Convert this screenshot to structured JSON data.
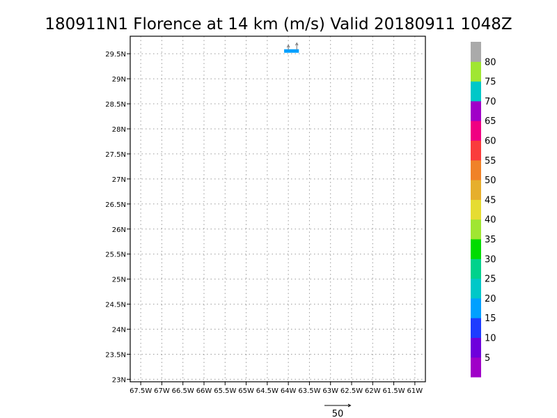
{
  "chart_data": {
    "type": "heatmap",
    "title": "180911N1 Florence at 14 km (m/s) Valid 20180911 1048Z",
    "xlabel": "",
    "ylabel": "",
    "xlim": [
      -67.75,
      -60.75
    ],
    "ylim": [
      22.95,
      29.85
    ],
    "grid": true,
    "x_ticks": [
      {
        "value": -67.5,
        "label": "67.5W"
      },
      {
        "value": -67,
        "label": "67W"
      },
      {
        "value": -66.5,
        "label": "66.5W"
      },
      {
        "value": -66,
        "label": "66W"
      },
      {
        "value": -65.5,
        "label": "65.5W"
      },
      {
        "value": -65,
        "label": "65W"
      },
      {
        "value": -64.5,
        "label": "64.5W"
      },
      {
        "value": -64,
        "label": "64W"
      },
      {
        "value": -63.5,
        "label": "63.5W"
      },
      {
        "value": -63,
        "label": "63W"
      },
      {
        "value": -62.5,
        "label": "62.5W"
      },
      {
        "value": -62,
        "label": "62W"
      },
      {
        "value": -61.5,
        "label": "61.5W"
      },
      {
        "value": -61,
        "label": "61W"
      }
    ],
    "y_ticks": [
      {
        "value": 23,
        "label": "23N"
      },
      {
        "value": 23.5,
        "label": "23.5N"
      },
      {
        "value": 24,
        "label": "24N"
      },
      {
        "value": 24.5,
        "label": "24.5N"
      },
      {
        "value": 25,
        "label": "25N"
      },
      {
        "value": 25.5,
        "label": "25.5N"
      },
      {
        "value": 26,
        "label": "26N"
      },
      {
        "value": 26.5,
        "label": "26.5N"
      },
      {
        "value": 27,
        "label": "27N"
      },
      {
        "value": 27.5,
        "label": "27.5N"
      },
      {
        "value": 28,
        "label": "28N"
      },
      {
        "value": 28.5,
        "label": "28.5N"
      },
      {
        "value": 29,
        "label": "29N"
      },
      {
        "value": 29.5,
        "label": "29.5N"
      }
    ],
    "cells": [
      {
        "lon_min": -64.1,
        "lon_max": -63.75,
        "lat_min": 29.52,
        "lat_max": 29.59,
        "value": 18
      }
    ],
    "vectors": [
      {
        "lon": -64.0,
        "lat": 29.58,
        "u": 0,
        "v": 9
      },
      {
        "lon": -63.8,
        "lat": 29.58,
        "u": 0,
        "v": 13
      }
    ],
    "reference_vector": {
      "magnitude": 50,
      "label": "50"
    },
    "colorbar": {
      "levels": [
        {
          "color": "#a000c8"
        },
        {
          "color": "#6e00dc"
        },
        {
          "color": "#1e3cff"
        },
        {
          "color": "#00a0ff"
        },
        {
          "color": "#00c8c8"
        },
        {
          "color": "#00d28c"
        },
        {
          "color": "#00dc00"
        },
        {
          "color": "#a0e632"
        },
        {
          "color": "#e6dc32"
        },
        {
          "color": "#e6af2d"
        },
        {
          "color": "#f08228"
        },
        {
          "color": "#fa3c3c"
        },
        {
          "color": "#f00082"
        },
        {
          "color": "#a000c8"
        },
        {
          "color": "#00c8c8"
        },
        {
          "color": "#a0e632"
        },
        {
          "color": "#aaaaaa"
        }
      ],
      "labels": [
        "5",
        "10",
        "15",
        "20",
        "25",
        "30",
        "35",
        "40",
        "45",
        "50",
        "55",
        "60",
        "65",
        "70",
        "75",
        "80"
      ]
    }
  }
}
